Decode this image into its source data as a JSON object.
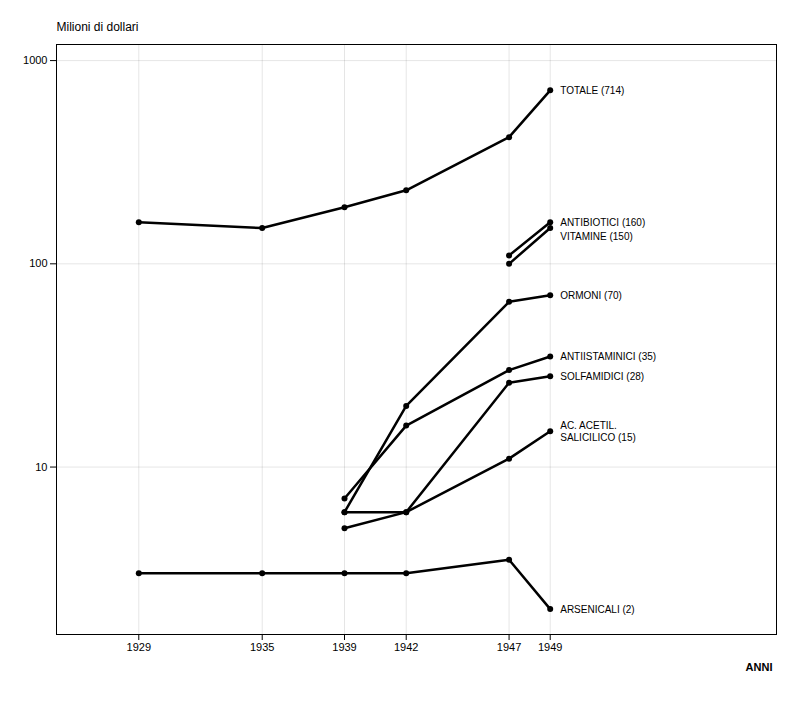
{
  "chart_data": {
    "type": "line",
    "xlabel": "ANNI",
    "ylabel": "Milioni di dollari",
    "series": [
      {
        "name": "TOTALE (714)",
        "x": [
          1929,
          1935,
          1939,
          1942,
          1947,
          1949
        ],
        "values": [
          160,
          150,
          190,
          230,
          420,
          714
        ]
      },
      {
        "name": "ANTIBIOTICI (160)",
        "x": [
          1947,
          1949
        ],
        "values": [
          110,
          160
        ]
      },
      {
        "name": "VITAMINE (150)",
        "x": [
          1947,
          1949
        ],
        "values": [
          100,
          150
        ]
      },
      {
        "name": "ORMONI (70)",
        "x": [
          1939,
          1942,
          1947,
          1949
        ],
        "values": [
          6,
          20,
          65,
          70
        ]
      },
      {
        "name": "ANTIISTAMINICI (35)",
        "x": [
          1939,
          1942,
          1947,
          1949
        ],
        "values": [
          7,
          16,
          30,
          35
        ]
      },
      {
        "name": "SOLFAMIDICI (28)",
        "x": [
          1939,
          1942,
          1947,
          1949
        ],
        "values": [
          5,
          6,
          26,
          28
        ]
      },
      {
        "name": "AC. ACETIL.\nSALICILICO (15)",
        "x": [
          1939,
          1942,
          1947,
          1949
        ],
        "values": [
          6,
          6,
          11,
          15
        ]
      },
      {
        "name": "ARSENICALI (2)",
        "x": [
          1929,
          1935,
          1939,
          1942,
          1947,
          1949
        ],
        "values": [
          3,
          3,
          3,
          3,
          3.5,
          2
        ]
      }
    ],
    "color": "black",
    "marker": "circle",
    "log": "y",
    "xlim": [
      1925,
      1960
    ],
    "xticks": [
      1929,
      1935,
      1939,
      1942,
      1947,
      1949
    ],
    "ylim": [
      1.5,
      1200
    ],
    "yticks": [
      10,
      100,
      1000
    ],
    "grid": true
  }
}
